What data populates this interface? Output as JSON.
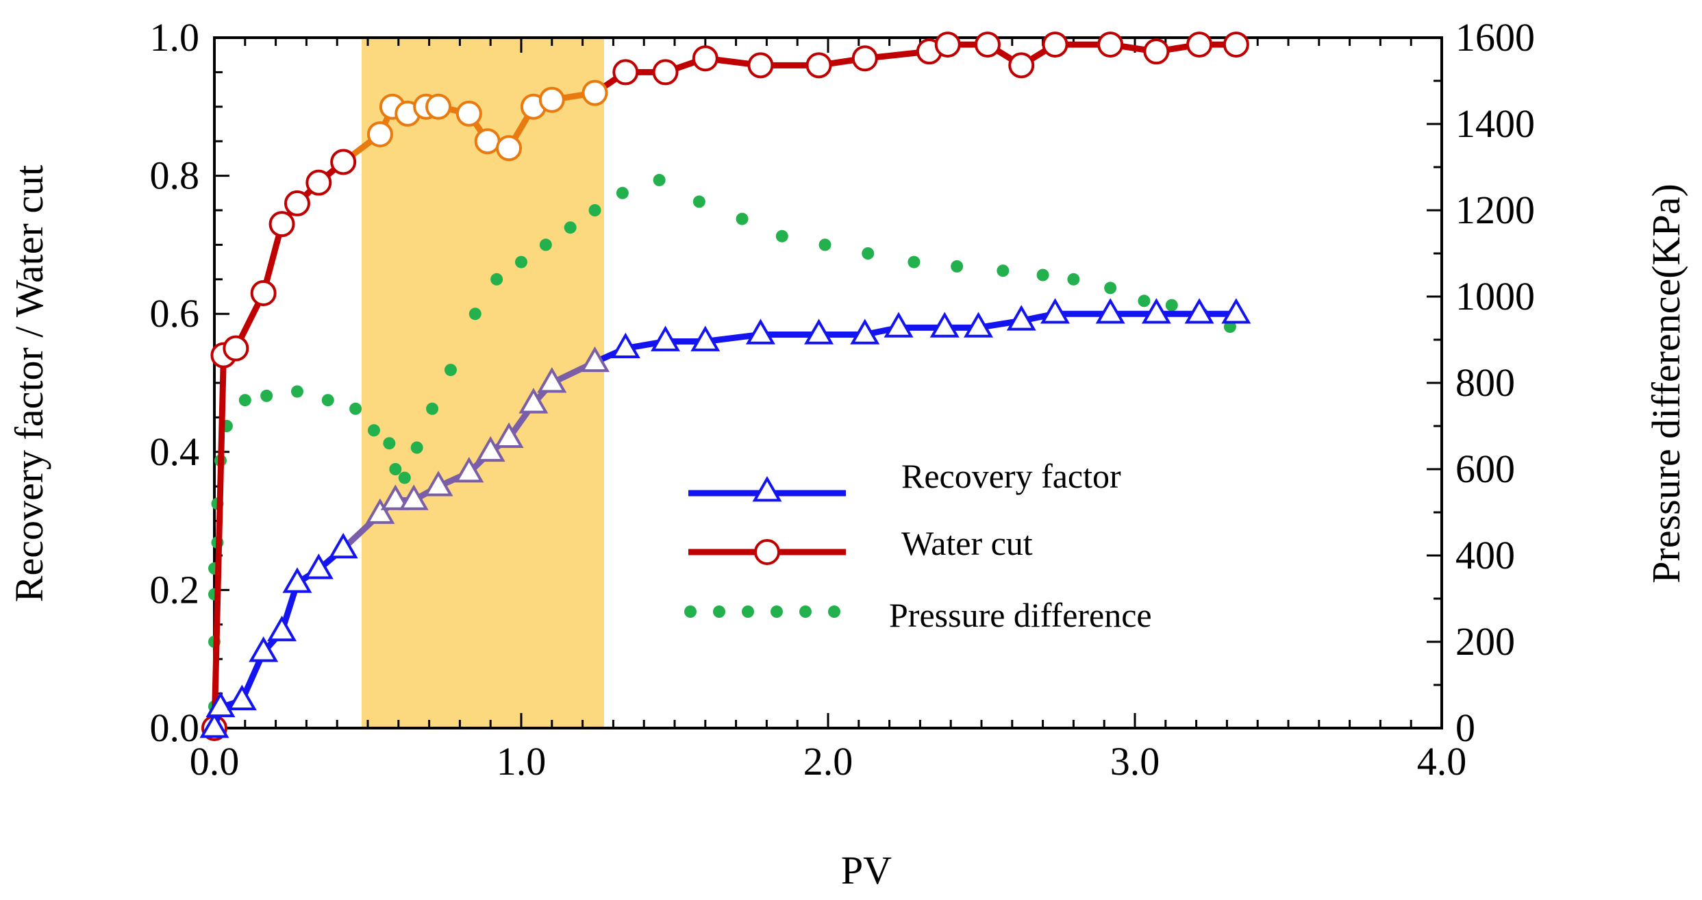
{
  "chart_data": {
    "type": "line",
    "xlabel": "PV",
    "ylabel_left": "Recovery factor / Water cut",
    "ylabel_right": "Pressure difference(KPa)",
    "xlim": [
      0,
      4.0
    ],
    "ylim_left": [
      0,
      1.0
    ],
    "ylim_right": [
      0,
      1600
    ],
    "x_ticks": [
      "0.0",
      "1.0",
      "2.0",
      "3.0",
      "4.0"
    ],
    "y_left_ticks": [
      "0.0",
      "0.2",
      "0.4",
      "0.6",
      "0.8",
      "1.0"
    ],
    "y_right_ticks": [
      "0",
      "200",
      "400",
      "600",
      "800",
      "1000",
      "1200",
      "1400",
      "1600"
    ],
    "highlight": {
      "x_start": 0.48,
      "x_end": 1.27,
      "color": "#fcd97e"
    },
    "legend": {
      "placement": "center-right",
      "entries": [
        "Recovery factor",
        "Water cut",
        "Pressure difference"
      ]
    },
    "series": [
      {
        "name": "Recovery factor",
        "axis": "left",
        "color": "#1414f0",
        "marker": "triangle",
        "x": [
          0.0,
          0.02,
          0.09,
          0.16,
          0.22,
          0.27,
          0.34,
          0.42,
          0.54,
          0.59,
          0.65,
          0.73,
          0.83,
          0.9,
          0.96,
          1.04,
          1.1,
          1.24,
          1.34,
          1.47,
          1.6,
          1.78,
          1.97,
          2.12,
          2.23,
          2.38,
          2.49,
          2.63,
          2.74,
          2.92,
          3.07,
          3.21,
          3.33
        ],
        "values": [
          0.0,
          0.03,
          0.04,
          0.11,
          0.14,
          0.21,
          0.23,
          0.26,
          0.31,
          0.33,
          0.33,
          0.35,
          0.37,
          0.4,
          0.42,
          0.47,
          0.5,
          0.53,
          0.55,
          0.56,
          0.56,
          0.57,
          0.57,
          0.57,
          0.58,
          0.58,
          0.58,
          0.59,
          0.6,
          0.6,
          0.6,
          0.6,
          0.6
        ]
      },
      {
        "name": "Water cut",
        "axis": "left",
        "color": "#c00000",
        "marker": "circle",
        "x": [
          0.0,
          0.03,
          0.07,
          0.16,
          0.22,
          0.27,
          0.34,
          0.42,
          0.54,
          0.58,
          0.63,
          0.69,
          0.73,
          0.83,
          0.89,
          0.96,
          1.04,
          1.1,
          1.24,
          1.34,
          1.47,
          1.6,
          1.78,
          1.97,
          2.12,
          2.33,
          2.39,
          2.52,
          2.63,
          2.74,
          2.92,
          3.07,
          3.21,
          3.33
        ],
        "values": [
          0.0,
          0.54,
          0.55,
          0.63,
          0.73,
          0.76,
          0.79,
          0.82,
          0.86,
          0.9,
          0.89,
          0.9,
          0.9,
          0.89,
          0.85,
          0.84,
          0.9,
          0.91,
          0.92,
          0.95,
          0.95,
          0.97,
          0.96,
          0.96,
          0.97,
          0.98,
          0.99,
          0.99,
          0.96,
          0.99,
          0.99,
          0.98,
          0.99,
          0.99
        ]
      },
      {
        "name": "Pressure difference",
        "axis": "right",
        "color": "#22b14c",
        "marker": "dot",
        "x": [
          0.0,
          0.0,
          0.0,
          0.0,
          0.0,
          0.01,
          0.01,
          0.02,
          0.04,
          0.1,
          0.17,
          0.27,
          0.37,
          0.46,
          0.52,
          0.57,
          0.59,
          0.62,
          0.66,
          0.71,
          0.77,
          0.85,
          0.92,
          1.0,
          1.08,
          1.16,
          1.24,
          1.33,
          1.45,
          1.58,
          1.72,
          1.85,
          1.99,
          2.13,
          2.28,
          2.42,
          2.57,
          2.7,
          2.8,
          2.92,
          3.03,
          3.12,
          3.22,
          3.31
        ],
        "values": [
          0,
          50,
          200,
          310,
          370,
          430,
          520,
          620,
          700,
          760,
          770,
          780,
          760,
          740,
          690,
          660,
          600,
          580,
          650,
          740,
          830,
          960,
          1040,
          1080,
          1120,
          1160,
          1200,
          1240,
          1270,
          1220,
          1180,
          1140,
          1120,
          1100,
          1080,
          1070,
          1060,
          1050,
          1040,
          1020,
          990,
          980,
          960,
          930
        ]
      }
    ]
  }
}
